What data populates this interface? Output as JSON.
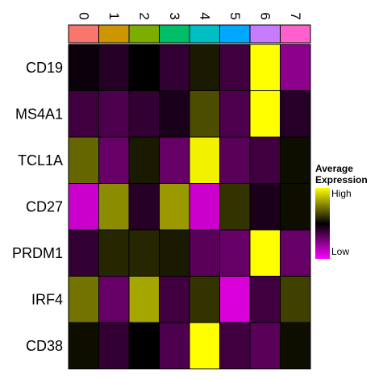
{
  "chart_data": {
    "type": "heatmap",
    "columns": [
      "0",
      "1",
      "2",
      "3",
      "4",
      "5",
      "6",
      "7"
    ],
    "column_colors": [
      "#F8766D",
      "#CD9600",
      "#7CAE00",
      "#00BE67",
      "#00BFC4",
      "#00A9FF",
      "#C77CFF",
      "#FF61CC"
    ],
    "rows": [
      "CD19",
      "MS4A1",
      "TCL1A",
      "CD27",
      "PRDM1",
      "IRF4",
      "CD38"
    ],
    "values": [
      [
        -0.05,
        -0.15,
        0.0,
        -0.2,
        0.1,
        -0.25,
        1.0,
        -0.55
      ],
      [
        -0.25,
        -0.3,
        -0.2,
        -0.1,
        0.3,
        -0.3,
        1.0,
        -0.15
      ],
      [
        0.4,
        -0.4,
        0.1,
        -0.4,
        0.95,
        -0.35,
        -0.25,
        0.05
      ],
      [
        -0.8,
        0.55,
        -0.15,
        0.6,
        -0.8,
        0.2,
        -0.1,
        0.05
      ],
      [
        -0.2,
        0.15,
        0.15,
        0.1,
        -0.35,
        -0.4,
        1.0,
        -0.4
      ],
      [
        0.45,
        -0.4,
        0.65,
        -0.25,
        0.2,
        -0.85,
        -0.25,
        0.25
      ],
      [
        0.05,
        -0.2,
        0.0,
        -0.3,
        1.0,
        -0.25,
        -0.35,
        0.05
      ]
    ],
    "value_range": [
      -1,
      1
    ],
    "colorscale": {
      "low": "#FF00FF",
      "mid": "#000000",
      "high": "#FFFF00"
    },
    "legend": {
      "title_line1": "Average",
      "title_line2": "Expression",
      "high_label": "High",
      "low_label": "Low",
      "placement": "right"
    }
  }
}
